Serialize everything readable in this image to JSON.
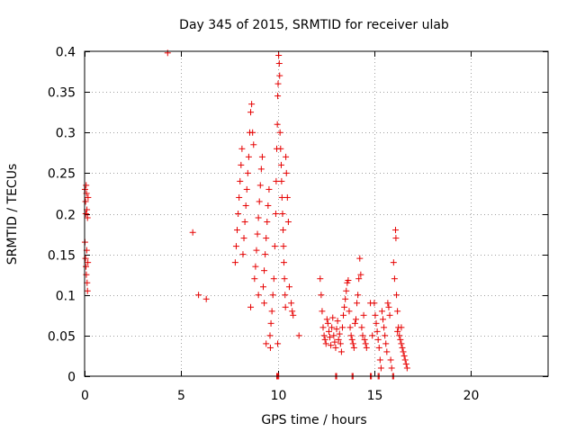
{
  "chart_data": {
    "type": "scatter",
    "title": "Day 345 of 2015, SRMTID for receiver ulab",
    "xlabel": "GPS time / hours",
    "ylabel": "SRMTID / TECUs",
    "xlim": [
      0,
      24
    ],
    "ylim": [
      0,
      0.4
    ],
    "x_ticks": [
      0,
      5,
      10,
      15,
      20
    ],
    "x_tick_labels": [
      "0",
      "5",
      "10",
      "15",
      "20"
    ],
    "y_ticks": [
      0,
      0.05,
      0.1,
      0.15,
      0.2,
      0.25,
      0.3,
      0.35,
      0.4
    ],
    "y_tick_labels": [
      "0",
      "0.05",
      "0.1",
      "0.15",
      "0.2",
      "0.25",
      "0.3",
      "0.35",
      "0.4"
    ],
    "grid": true,
    "marker": "plus",
    "marker_color": "#e60000",
    "series": [
      {
        "name": "SRMTID",
        "points": [
          [
            0.02,
            0.23
          ],
          [
            0.05,
            0.215
          ],
          [
            0.06,
            0.2
          ],
          [
            0.08,
            0.235
          ],
          [
            0.1,
            0.225
          ],
          [
            0.12,
            0.205
          ],
          [
            0.15,
            0.195
          ],
          [
            0.18,
            0.22
          ],
          [
            0.02,
            0.165
          ],
          [
            0.05,
            0.145
          ],
          [
            0.07,
            0.135
          ],
          [
            0.09,
            0.125
          ],
          [
            0.11,
            0.155
          ],
          [
            0.13,
            0.115
          ],
          [
            0.15,
            0.105
          ],
          [
            0.17,
            0.14
          ],
          [
            4.3,
            0.398
          ],
          [
            5.6,
            0.177
          ],
          [
            5.9,
            0.1
          ],
          [
            6.3,
            0.095
          ],
          [
            7.8,
            0.14
          ],
          [
            7.85,
            0.16
          ],
          [
            7.9,
            0.18
          ],
          [
            7.95,
            0.2
          ],
          [
            8.0,
            0.22
          ],
          [
            8.05,
            0.24
          ],
          [
            8.1,
            0.26
          ],
          [
            8.15,
            0.28
          ],
          [
            8.2,
            0.15
          ],
          [
            8.25,
            0.17
          ],
          [
            8.3,
            0.19
          ],
          [
            8.35,
            0.21
          ],
          [
            8.4,
            0.23
          ],
          [
            8.45,
            0.25
          ],
          [
            8.5,
            0.27
          ],
          [
            8.55,
            0.3
          ],
          [
            8.6,
            0.325
          ],
          [
            8.65,
            0.335
          ],
          [
            8.7,
            0.3
          ],
          [
            8.75,
            0.285
          ],
          [
            8.8,
            0.12
          ],
          [
            8.85,
            0.135
          ],
          [
            8.9,
            0.155
          ],
          [
            8.95,
            0.175
          ],
          [
            9.0,
            0.195
          ],
          [
            9.05,
            0.215
          ],
          [
            9.1,
            0.235
          ],
          [
            9.15,
            0.255
          ],
          [
            9.2,
            0.27
          ],
          [
            9.25,
            0.11
          ],
          [
            9.3,
            0.13
          ],
          [
            9.35,
            0.15
          ],
          [
            9.4,
            0.17
          ],
          [
            9.45,
            0.19
          ],
          [
            9.5,
            0.21
          ],
          [
            9.55,
            0.23
          ],
          [
            9.6,
            0.05
          ],
          [
            9.62,
            0.035
          ],
          [
            9.65,
            0.065
          ],
          [
            9.7,
            0.08
          ],
          [
            9.75,
            0.1
          ],
          [
            9.8,
            0.12
          ],
          [
            9.85,
            0.16
          ],
          [
            9.9,
            0.2
          ],
          [
            9.92,
            0.24
          ],
          [
            9.95,
            0.28
          ],
          [
            9.98,
            0.31
          ],
          [
            10.0,
            0.345
          ],
          [
            10.02,
            0.36
          ],
          [
            10.05,
            0.395
          ],
          [
            10.08,
            0.385
          ],
          [
            10.1,
            0.37
          ],
          [
            10.12,
            0.3
          ],
          [
            10.15,
            0.28
          ],
          [
            10.18,
            0.26
          ],
          [
            10.2,
            0.24
          ],
          [
            10.22,
            0.22
          ],
          [
            10.25,
            0.2
          ],
          [
            10.28,
            0.18
          ],
          [
            10.3,
            0.16
          ],
          [
            10.32,
            0.14
          ],
          [
            10.35,
            0.12
          ],
          [
            10.38,
            0.1
          ],
          [
            10.4,
            0.085
          ],
          [
            10.42,
            0.27
          ],
          [
            10.45,
            0.25
          ],
          [
            10.5,
            0.22
          ],
          [
            10.55,
            0.19
          ],
          [
            10.6,
            0.11
          ],
          [
            10.7,
            0.09
          ],
          [
            10.75,
            0.08
          ],
          [
            10.8,
            0.075
          ],
          [
            10.0,
            0.04
          ],
          [
            11.1,
            0.05
          ],
          [
            9.3,
            0.09
          ],
          [
            8.6,
            0.085
          ],
          [
            9.0,
            0.1
          ],
          [
            9.4,
            0.04
          ],
          [
            12.2,
            0.12
          ],
          [
            12.25,
            0.1
          ],
          [
            12.3,
            0.08
          ],
          [
            12.35,
            0.06
          ],
          [
            12.4,
            0.05
          ],
          [
            12.45,
            0.045
          ],
          [
            12.5,
            0.04
          ],
          [
            12.55,
            0.07
          ],
          [
            12.6,
            0.065
          ],
          [
            12.65,
            0.055
          ],
          [
            12.7,
            0.048
          ],
          [
            12.75,
            0.038
          ],
          [
            12.8,
            0.06
          ],
          [
            12.85,
            0.072
          ],
          [
            12.9,
            0.05
          ],
          [
            12.95,
            0.042
          ],
          [
            13.0,
            0.035
          ],
          [
            13.05,
            0.058
          ],
          [
            13.1,
            0.068
          ],
          [
            13.15,
            0.045
          ],
          [
            13.2,
            0.052
          ],
          [
            13.25,
            0.04
          ],
          [
            13.3,
            0.03
          ],
          [
            13.35,
            0.06
          ],
          [
            13.4,
            0.075
          ],
          [
            13.45,
            0.085
          ],
          [
            13.5,
            0.095
          ],
          [
            13.55,
            0.105
          ],
          [
            13.6,
            0.115
          ],
          [
            13.65,
            0.118
          ],
          [
            13.7,
            0.08
          ],
          [
            13.75,
            0.06
          ],
          [
            13.8,
            0.05
          ],
          [
            13.85,
            0.045
          ],
          [
            13.9,
            0.04
          ],
          [
            13.95,
            0.035
          ],
          [
            14.0,
            0.065
          ],
          [
            14.05,
            0.07
          ],
          [
            14.1,
            0.09
          ],
          [
            14.15,
            0.1
          ],
          [
            14.2,
            0.12
          ],
          [
            14.25,
            0.145
          ],
          [
            14.3,
            0.125
          ],
          [
            14.35,
            0.06
          ],
          [
            14.4,
            0.05
          ],
          [
            14.45,
            0.075
          ],
          [
            14.5,
            0.045
          ],
          [
            14.55,
            0.04
          ],
          [
            14.6,
            0.035
          ],
          [
            14.8,
            0.09
          ],
          [
            14.9,
            0.05
          ],
          [
            15.0,
            0.09
          ],
          [
            15.05,
            0.075
          ],
          [
            15.1,
            0.065
          ],
          [
            15.15,
            0.055
          ],
          [
            15.2,
            0.045
          ],
          [
            15.25,
            0.035
          ],
          [
            15.3,
            0.02
          ],
          [
            15.35,
            0.01
          ],
          [
            15.4,
            0.08
          ],
          [
            15.45,
            0.07
          ],
          [
            15.5,
            0.06
          ],
          [
            15.55,
            0.05
          ],
          [
            15.6,
            0.04
          ],
          [
            15.65,
            0.03
          ],
          [
            15.7,
            0.09
          ],
          [
            15.75,
            0.085
          ],
          [
            15.8,
            0.075
          ],
          [
            15.85,
            0.02
          ],
          [
            15.9,
            0.01
          ],
          [
            16.0,
            0.14
          ],
          [
            16.05,
            0.12
          ],
          [
            16.1,
            0.18
          ],
          [
            16.12,
            0.17
          ],
          [
            16.15,
            0.1
          ],
          [
            16.2,
            0.08
          ],
          [
            16.25,
            0.06
          ],
          [
            16.3,
            0.05
          ],
          [
            16.35,
            0.045
          ],
          [
            16.4,
            0.04
          ],
          [
            16.45,
            0.035
          ],
          [
            16.5,
            0.03
          ],
          [
            16.55,
            0.025
          ],
          [
            16.6,
            0.02
          ],
          [
            16.65,
            0.015
          ],
          [
            16.7,
            0.01
          ],
          [
            16.2,
            0.055
          ],
          [
            16.4,
            0.06
          ],
          [
            9.95,
            0.0
          ],
          [
            10.0,
            0.0
          ],
          [
            10.05,
            0.0
          ],
          [
            13.0,
            0.0
          ],
          [
            13.05,
            0.0
          ],
          [
            13.85,
            0.0
          ],
          [
            13.9,
            0.0
          ],
          [
            14.8,
            0.0
          ],
          [
            14.85,
            0.0
          ],
          [
            15.2,
            0.0
          ],
          [
            15.25,
            0.0
          ],
          [
            15.95,
            0.0
          ],
          [
            16.0,
            0.0
          ]
        ]
      }
    ]
  }
}
